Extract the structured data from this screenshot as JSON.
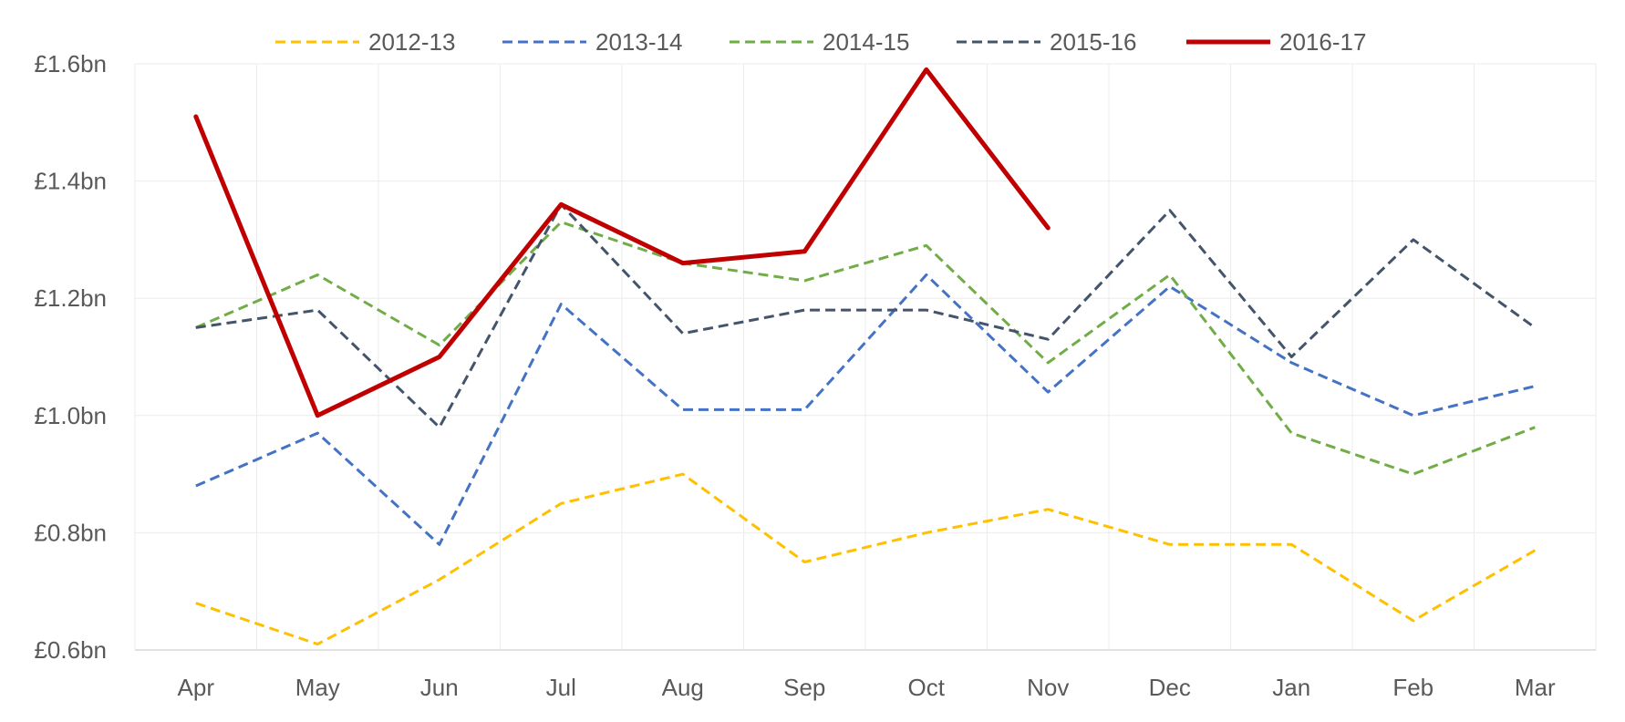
{
  "chart_data": {
    "type": "line",
    "title": "",
    "xlabel": "",
    "ylabel": "",
    "categories": [
      "Apr",
      "May",
      "Jun",
      "Jul",
      "Aug",
      "Sep",
      "Oct",
      "Nov",
      "Dec",
      "Jan",
      "Feb",
      "Mar"
    ],
    "ylim": [
      0.6,
      1.6
    ],
    "y_ticks": [
      {
        "value": 0.6,
        "label": "£0.6bn"
      },
      {
        "value": 0.8,
        "label": "£0.8bn"
      },
      {
        "value": 1.0,
        "label": "£1.0bn"
      },
      {
        "value": 1.2,
        "label": "£1.2bn"
      },
      {
        "value": 1.4,
        "label": "£1.4bn"
      },
      {
        "value": 1.6,
        "label": "£1.6bn"
      }
    ],
    "grid": true,
    "legend_position": "top",
    "series": [
      {
        "name": "2012-13",
        "color": "#FFC000",
        "dashed": true,
        "values": [
          0.68,
          0.61,
          0.72,
          0.85,
          0.9,
          0.75,
          0.8,
          0.84,
          0.78,
          0.78,
          0.65,
          0.77
        ]
      },
      {
        "name": "2013-14",
        "color": "#4472C4",
        "dashed": true,
        "values": [
          0.88,
          0.97,
          0.78,
          1.19,
          1.01,
          1.01,
          1.24,
          1.04,
          1.22,
          1.09,
          1.0,
          1.05
        ]
      },
      {
        "name": "2014-15",
        "color": "#70AD47",
        "dashed": true,
        "values": [
          1.15,
          1.24,
          1.12,
          1.33,
          1.26,
          1.23,
          1.29,
          1.09,
          1.24,
          0.97,
          0.9,
          0.98
        ]
      },
      {
        "name": "2015-16",
        "color": "#44546A",
        "dashed": true,
        "values": [
          1.15,
          1.18,
          0.98,
          1.36,
          1.14,
          1.18,
          1.18,
          1.13,
          1.35,
          1.1,
          1.3,
          1.15
        ]
      },
      {
        "name": "2016-17",
        "color": "#C00000",
        "dashed": false,
        "values": [
          1.51,
          1.0,
          1.1,
          1.36,
          1.26,
          1.28,
          1.59,
          1.32,
          null,
          null,
          null,
          null
        ]
      }
    ]
  }
}
